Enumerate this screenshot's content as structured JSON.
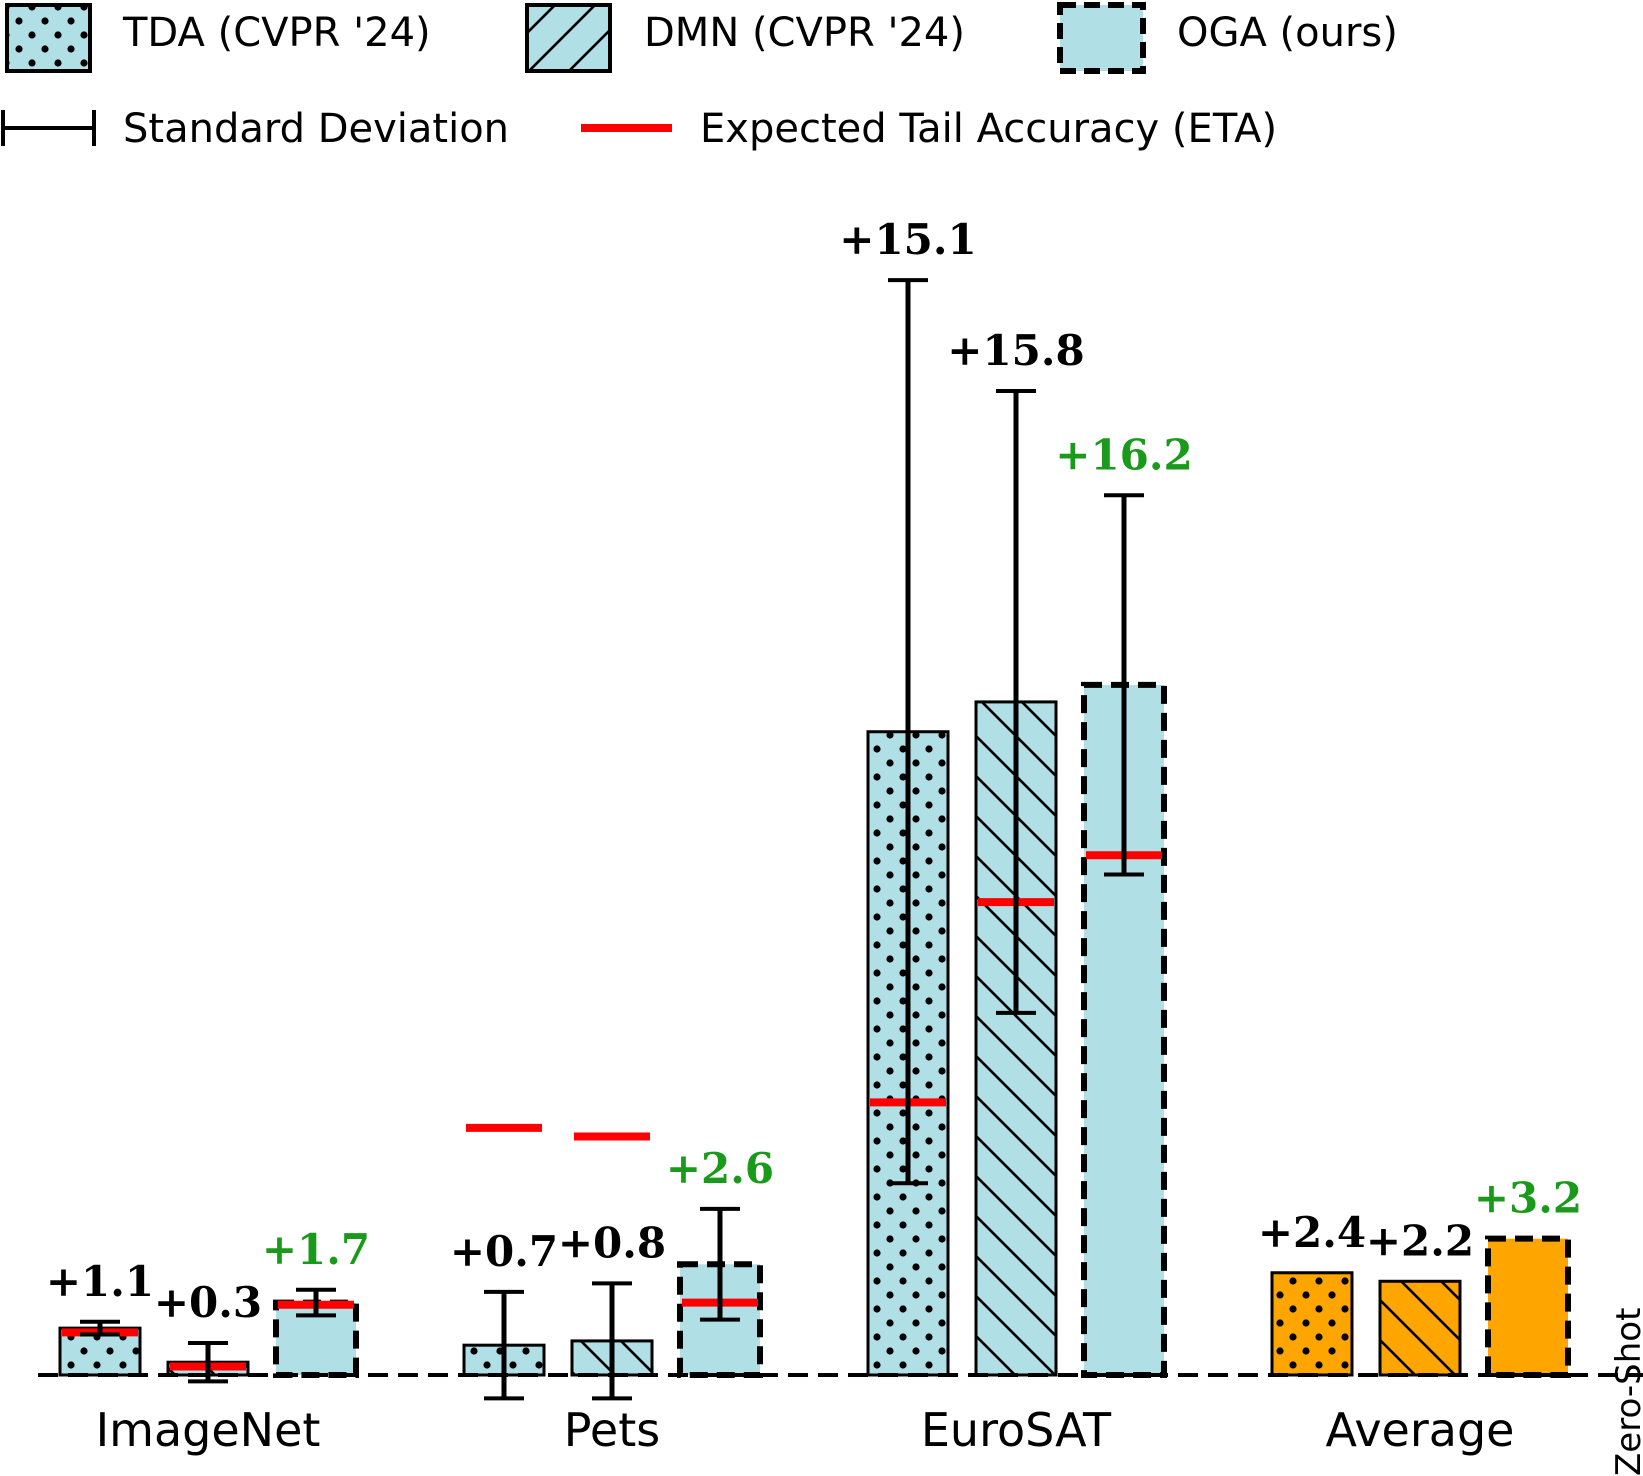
{
  "colors": {
    "dataset_fill": "#b0e0e6",
    "average_fill": "#ffa500",
    "eta_line": "#ff0000",
    "ours_gain": "#1a9a1a",
    "baseline_gain": "#000000"
  },
  "legend": {
    "methods": [
      {
        "label": "TDA (CVPR '24)",
        "pattern": "dots"
      },
      {
        "label": "DMN (CVPR '24)",
        "pattern": "hatch"
      },
      {
        "label": "OGA (ours)",
        "pattern": "dashed-border"
      }
    ],
    "std_label": "Standard Deviation",
    "eta_label": "Expected Tail Accuracy (ETA)"
  },
  "baseline_label": "Zero-Shot",
  "chart_data": {
    "type": "bar",
    "baseline": "Zero-Shot",
    "categories": [
      "ImageNet",
      "Pets",
      "EuroSAT",
      "Average"
    ],
    "ylim": [
      0,
      18
    ],
    "series": [
      {
        "name": "TDA (CVPR '24)",
        "values": [
          1.1,
          0.7,
          15.1,
          2.4
        ],
        "labels": [
          "+1.1",
          "+0.7",
          "+15.1",
          "+2.4"
        ],
        "std": [
          0.3,
          2.5,
          21.2,
          null
        ],
        "eta": [
          1.0,
          5.8,
          6.4,
          null
        ]
      },
      {
        "name": "DMN (CVPR '24)",
        "values": [
          0.3,
          0.8,
          15.8,
          2.2
        ],
        "labels": [
          "+0.3",
          "+0.8",
          "+15.8",
          "+2.2"
        ],
        "std": [
          0.9,
          2.7,
          14.6,
          null
        ],
        "eta": [
          0.2,
          5.6,
          11.1,
          null
        ]
      },
      {
        "name": "OGA (ours)",
        "values": [
          1.7,
          2.6,
          16.2,
          3.2
        ],
        "labels": [
          "+1.7",
          "+2.6",
          "+16.2",
          "+3.2"
        ],
        "std": [
          0.6,
          2.6,
          8.9,
          null
        ],
        "eta": [
          1.65,
          1.7,
          12.2,
          null
        ]
      }
    ]
  }
}
